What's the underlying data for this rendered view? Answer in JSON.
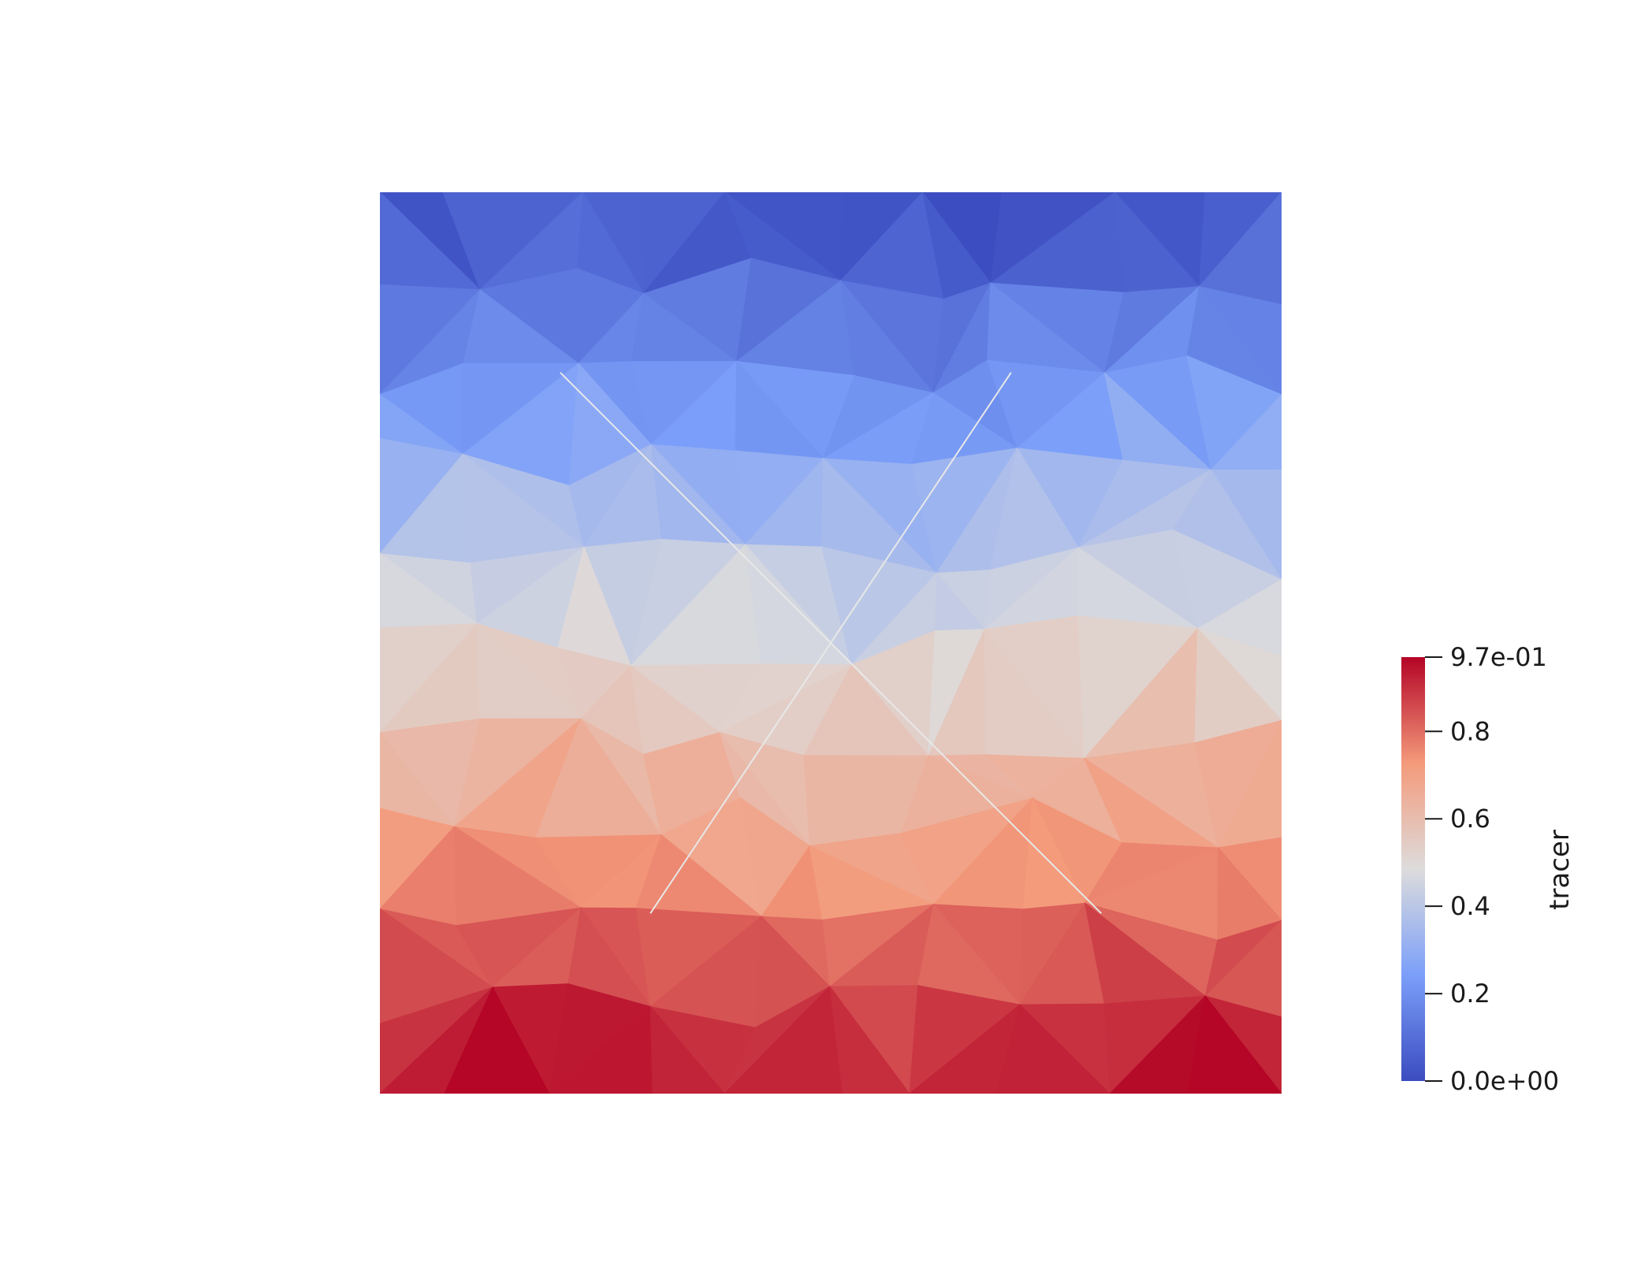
{
  "colorbar": {
    "title": "tracer",
    "range": [
      0.0,
      0.97
    ],
    "tick_labels": [
      "9.7e-01",
      "0.8",
      "0.6",
      "0.4",
      "0.2",
      "0.0e+00"
    ],
    "tick_values": [
      0.97,
      0.8,
      0.6,
      0.4,
      0.2,
      0.0
    ],
    "colormap_stops": [
      {
        "t": 0.0,
        "color": "#3b4cc0"
      },
      {
        "t": 0.25,
        "color": "#7b9ff9"
      },
      {
        "t": 0.5,
        "color": "#dddcdc"
      },
      {
        "t": 0.75,
        "color": "#f49a7b"
      },
      {
        "t": 1.0,
        "color": "#b40426"
      }
    ]
  },
  "field": {
    "name": "tracer",
    "min": 0.0,
    "max": 0.97,
    "gradient": "increases from top edge to bottom edge"
  },
  "colors": {
    "background": "#ffffff",
    "fracture_line": "#e8e8e8"
  }
}
